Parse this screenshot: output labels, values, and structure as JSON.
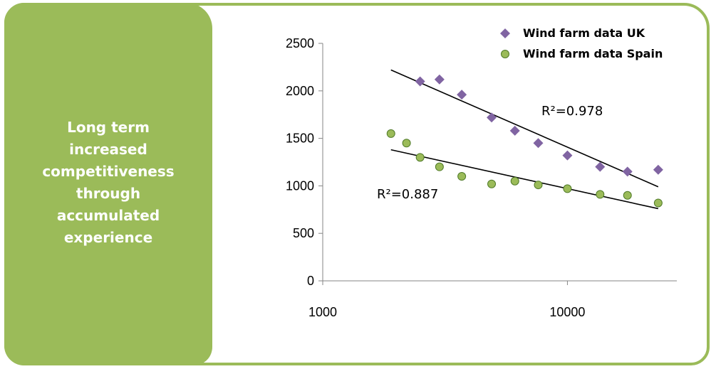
{
  "panel": {
    "text": "Long term\nincreased\ncompetitiveness\nthrough\naccumulated\nexperience",
    "bg_color": "#9bbb59",
    "text_color": "#ffffff"
  },
  "chart_data": {
    "type": "scatter",
    "title": "",
    "xlabel": "",
    "ylabel": "",
    "xscale": "log",
    "xlim": [
      1000,
      28000
    ],
    "ylim": [
      0,
      2500
    ],
    "yticks": [
      0,
      500,
      1000,
      1500,
      2000,
      2500
    ],
    "xticks": [
      1000,
      10000
    ],
    "grid": false,
    "legend_position": "top-right",
    "series": [
      {
        "name": "Wind farm data UK",
        "marker": "diamond",
        "color": "#8064a2",
        "x": [
          2500,
          3000,
          3700,
          4900,
          6100,
          7600,
          10000,
          13600,
          17600,
          23500
        ],
        "y": [
          2100,
          2120,
          1960,
          1720,
          1580,
          1450,
          1320,
          1200,
          1150,
          1170
        ],
        "trendline": {
          "x": [
            1900,
            23500
          ],
          "y": [
            2220,
            990
          ]
        },
        "r2_label": "R²=0.978"
      },
      {
        "name": "Wind farm data Spain",
        "marker": "circle",
        "color": "#9bbb59",
        "x": [
          1900,
          2200,
          2500,
          3000,
          3700,
          4900,
          6100,
          7600,
          10000,
          13600,
          17600,
          23500
        ],
        "y": [
          1550,
          1450,
          1300,
          1200,
          1100,
          1020,
          1050,
          1010,
          970,
          910,
          900,
          820
        ],
        "trendline": {
          "x": [
            1900,
            23500
          ],
          "y": [
            1380,
            760
          ]
        },
        "r2_label": "R²=0.887"
      }
    ]
  }
}
